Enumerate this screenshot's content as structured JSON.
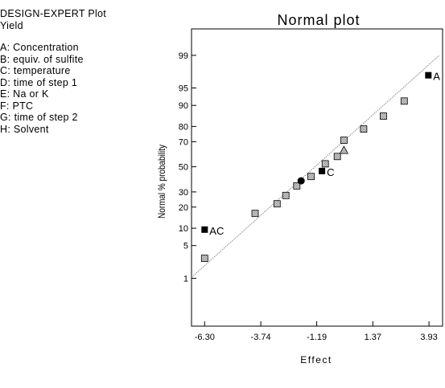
{
  "panel": {
    "header": "DESIGN-EXPERT Plot",
    "response": "Yield",
    "factors": [
      "A: Concentration",
      "B: equiv. of sulfite",
      "C: temperature",
      "D: time of step 1",
      "E: Na or K",
      "F: PTC",
      "G: time of step 2",
      "H: Solvent"
    ]
  },
  "chart_data": {
    "type": "scatter",
    "title": "Normal plot",
    "xlabel": "Effect",
    "ylabel": "Normal % probability",
    "xlim": [
      -6.9,
      4.55
    ],
    "x_ticks": [
      -6.3,
      -3.74,
      -1.19,
      1.37,
      3.93
    ],
    "x_tick_labels": [
      "-6.30",
      "-3.74",
      "-1.19",
      "1.37",
      "3.93"
    ],
    "y_scale": "normal-probability",
    "ylim": [
      0.044,
      99.8
    ],
    "y_ticks": [
      1,
      5,
      10,
      20,
      30,
      50,
      70,
      80,
      90,
      95,
      99
    ],
    "y_tick_labels": [
      "1",
      "5",
      "10",
      "20",
      "30",
      "50",
      "70",
      "80",
      "90",
      "95",
      "99"
    ],
    "grid": false,
    "reference_line": {
      "from": [
        -6.9,
        1.05
      ],
      "to": [
        4.4,
        99.0
      ]
    },
    "points": [
      {
        "x": -6.3,
        "y": 9.5,
        "marker": "filled-square",
        "label": "AC"
      },
      {
        "x": -6.3,
        "y": 2.8,
        "marker": "hatched-square"
      },
      {
        "x": -4.0,
        "y": 16.5,
        "marker": "hatched-square"
      },
      {
        "x": -3.0,
        "y": 22.0,
        "marker": "hatched-square"
      },
      {
        "x": -2.6,
        "y": 27.5,
        "marker": "hatched-square"
      },
      {
        "x": -2.1,
        "y": 34.5,
        "marker": "hatched-square"
      },
      {
        "x": -1.9,
        "y": 38.5,
        "marker": "filled-circle"
      },
      {
        "x": -1.45,
        "y": 42.0,
        "marker": "hatched-square"
      },
      {
        "x": -0.95,
        "y": 46.5,
        "marker": "filled-square",
        "label": "C"
      },
      {
        "x": -0.8,
        "y": 52.5,
        "marker": "hatched-square"
      },
      {
        "x": -0.25,
        "y": 58.5,
        "marker": "hatched-square"
      },
      {
        "x": 0.05,
        "y": 63.5,
        "marker": "triangle"
      },
      {
        "x": 0.05,
        "y": 71.0,
        "marker": "hatched-square"
      },
      {
        "x": 0.95,
        "y": 78.5,
        "marker": "hatched-square"
      },
      {
        "x": 1.85,
        "y": 85.5,
        "marker": "hatched-square"
      },
      {
        "x": 2.8,
        "y": 91.5,
        "marker": "hatched-square"
      },
      {
        "x": 3.9,
        "y": 97.2,
        "marker": "filled-square",
        "label": "A"
      }
    ]
  }
}
